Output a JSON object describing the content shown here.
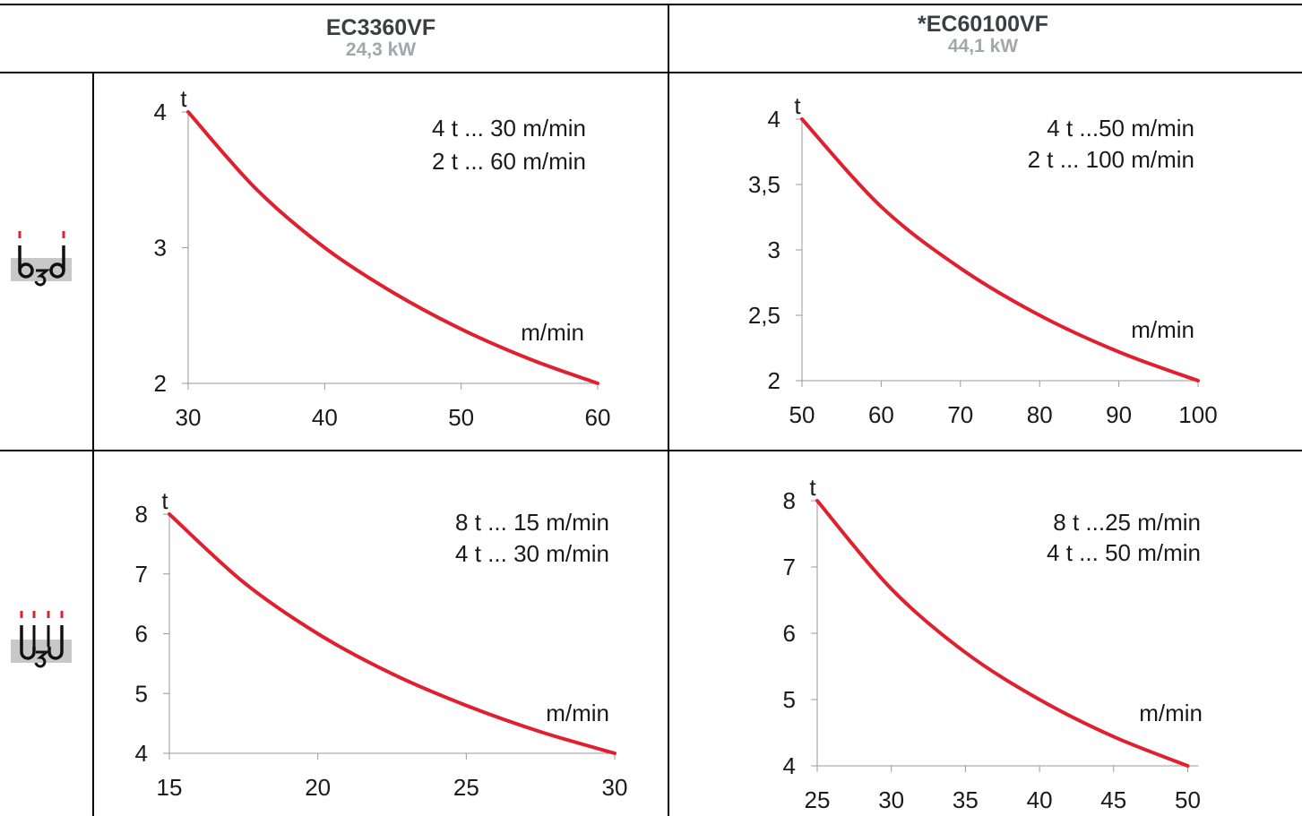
{
  "header": {
    "col1": {
      "model": "EC3360VF",
      "power": "24,3 kW"
    },
    "col2": {
      "model": "*EC60100VF",
      "power": "44,1 kW"
    }
  },
  "rows": [
    {
      "icon": "two-fall-hook-icon"
    },
    {
      "icon": "four-fall-hook-icon"
    }
  ],
  "colors": {
    "curve": "#e0202e",
    "axis": "#999999",
    "icon_accent": "#e0202e",
    "icon_base": "#c8c8c8"
  },
  "chart_data": [
    {
      "type": "line",
      "xlim": [
        30,
        60
      ],
      "ylim": [
        2,
        4
      ],
      "xticks": [
        "30",
        "40",
        "50",
        "60"
      ],
      "xtick_values": [
        30,
        40,
        50,
        60
      ],
      "yticks": [
        "2",
        "3",
        "4"
      ],
      "ytick_values": [
        2,
        3,
        4
      ],
      "xlabel": "m/min",
      "ylabel": "t",
      "annotations": [
        "4 t ...  30 m/min",
        "2 t ... 60 m/min"
      ],
      "series": [
        {
          "x": [
            30,
            35,
            40,
            45,
            50,
            55,
            60
          ],
          "y": [
            4.0,
            3.43,
            3.0,
            2.67,
            2.4,
            2.18,
            2.0
          ]
        }
      ]
    },
    {
      "type": "line",
      "xlim": [
        50,
        100
      ],
      "ylim": [
        2,
        4
      ],
      "xticks": [
        "50",
        "60",
        "70",
        "80",
        "90",
        "100"
      ],
      "xtick_values": [
        50,
        60,
        70,
        80,
        90,
        100
      ],
      "yticks": [
        "2",
        "2,5",
        "3",
        "3,5",
        "4"
      ],
      "ytick_values": [
        2,
        2.5,
        3,
        3.5,
        4
      ],
      "xlabel": "m/min",
      "ylabel": "t",
      "annotations": [
        "4 t ...50 m/min",
        "2 t ... 100 m/min"
      ],
      "series": [
        {
          "x": [
            50,
            60,
            70,
            80,
            90,
            100
          ],
          "y": [
            4.0,
            3.33,
            2.86,
            2.5,
            2.22,
            2.0
          ]
        }
      ]
    },
    {
      "type": "line",
      "xlim": [
        15,
        30
      ],
      "ylim": [
        4,
        8
      ],
      "xticks": [
        "15",
        "20",
        "25",
        "30"
      ],
      "xtick_values": [
        15,
        20,
        25,
        30
      ],
      "yticks": [
        "4",
        "5",
        "6",
        "7",
        "8"
      ],
      "ytick_values": [
        4,
        5,
        6,
        7,
        8
      ],
      "xlabel": "m/min",
      "ylabel": "t",
      "annotations": [
        "8 t ...   15 m/min",
        "4 t ... 30 m/min"
      ],
      "series": [
        {
          "x": [
            15,
            17.5,
            20,
            22.5,
            25,
            27.5,
            30
          ],
          "y": [
            8.0,
            6.86,
            6.0,
            5.33,
            4.8,
            4.36,
            4.0
          ]
        }
      ]
    },
    {
      "type": "line",
      "xlim": [
        25,
        51
      ],
      "ylim": [
        4,
        8
      ],
      "xticks": [
        "25",
        "30",
        "35",
        "40",
        "45",
        "50"
      ],
      "xtick_values": [
        25,
        30,
        35,
        40,
        45,
        50
      ],
      "yticks": [
        "4",
        "5",
        "6",
        "7",
        "8"
      ],
      "ytick_values": [
        4,
        5,
        6,
        7,
        8
      ],
      "xlabel": "m/min",
      "ylabel": "t",
      "annotations": [
        "8 t ...25 m/min",
        "4 t ... 50 m/min"
      ],
      "series": [
        {
          "x": [
            25,
            30,
            35,
            40,
            45,
            50
          ],
          "y": [
            8.0,
            6.67,
            5.71,
            5.0,
            4.44,
            4.0
          ]
        }
      ]
    }
  ]
}
